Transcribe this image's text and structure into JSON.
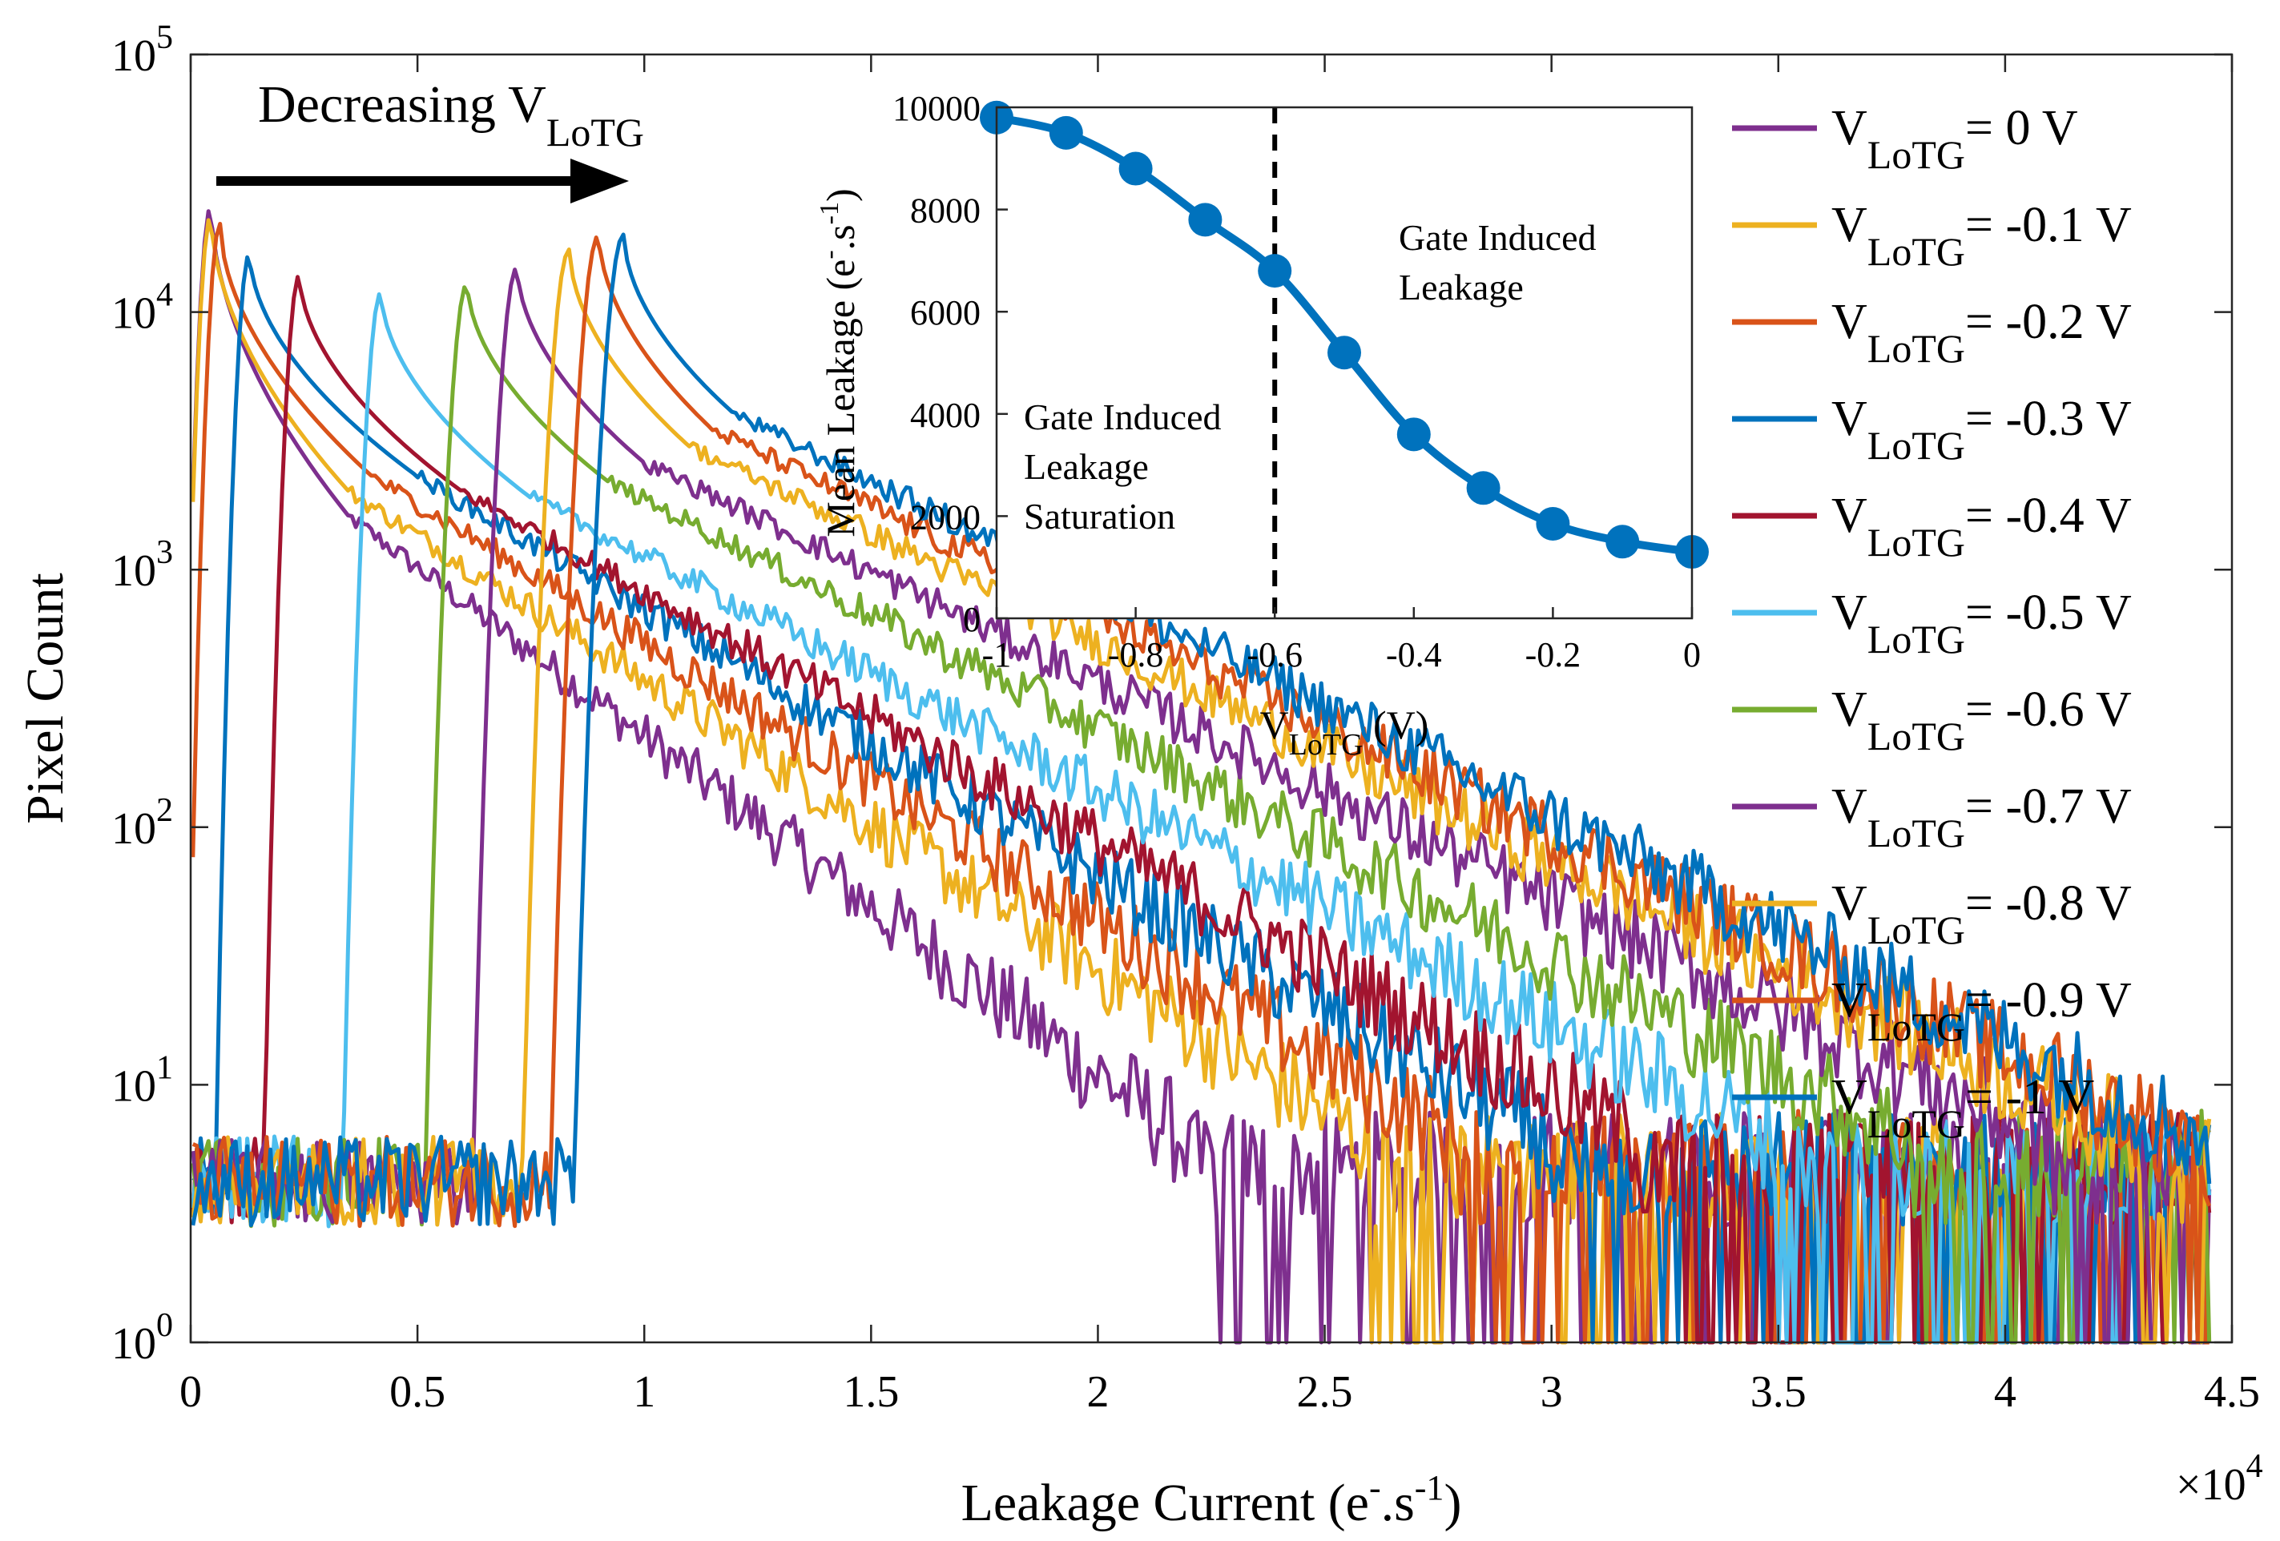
{
  "chart_data": [
    {
      "type": "line",
      "xlabel": "Leakage Current (e",
      "xlabel_sup1": "-",
      "xlabel_mid": ".s",
      "xlabel_sup2": "-1",
      "xlabel_end": ")",
      "ylabel": "Pixel Count",
      "x_multiplier_base": "×10",
      "x_multiplier_exp": "4",
      "xlim": [
        0,
        4.5
      ],
      "ylim": [
        1,
        100000
      ],
      "yscale": "log",
      "x_ticks": [
        "0",
        "0.5",
        "1",
        "1.5",
        "2",
        "2.5",
        "3",
        "3.5",
        "4",
        "4.5"
      ],
      "y_ticks": [
        {
          "base": "10",
          "exp": "0"
        },
        {
          "base": "10",
          "exp": "1"
        },
        {
          "base": "10",
          "exp": "2"
        },
        {
          "base": "10",
          "exp": "3"
        },
        {
          "base": "10",
          "exp": "4"
        },
        {
          "base": "10",
          "exp": "5"
        }
      ],
      "annotation": {
        "text": "Decreasing V",
        "sub": "LoTG"
      },
      "legend_position": "right",
      "series": [
        {
          "name": "V",
          "sub": "LoTG",
          "suffix": "= 0 V",
          "color": "#7E2F8E",
          "peak_x": 0.045,
          "peak_y": 26000,
          "tail_start_x": 0.35,
          "tail_start_y": 1600,
          "tail_end_x": 2.2,
          "tail_end_y": 6
        },
        {
          "name": "V",
          "sub": "LoTG",
          "suffix": "= -0.1 V",
          "color": "#EDB120",
          "peak_x": 0.045,
          "peak_y": 24000,
          "tail_start_x": 0.35,
          "tail_start_y": 2000,
          "tail_end_x": 2.6,
          "tail_end_y": 6
        },
        {
          "name": "V",
          "sub": "LoTG",
          "suffix": "= -0.2 V",
          "color": "#D95319",
          "peak_x": 0.065,
          "peak_y": 22000,
          "tail_start_x": 0.4,
          "tail_start_y": 2300,
          "tail_end_x": 2.8,
          "tail_end_y": 6
        },
        {
          "name": "V",
          "sub": "LoTG",
          "suffix": "= -0.3 V",
          "color": "#0072BD",
          "peak_x": 0.13,
          "peak_y": 17000,
          "tail_start_x": 0.5,
          "tail_start_y": 2300,
          "tail_end_x": 3.0,
          "tail_end_y": 6
        },
        {
          "name": "V",
          "sub": "LoTG",
          "suffix": "= -0.4 V",
          "color": "#A2142F",
          "peak_x": 0.24,
          "peak_y": 14000,
          "tail_start_x": 0.6,
          "tail_start_y": 2000,
          "tail_end_x": 3.2,
          "tail_end_y": 6
        },
        {
          "name": "V",
          "sub": "LoTG",
          "suffix": "= -0.5 V",
          "color": "#4DBEEE",
          "peak_x": 0.42,
          "peak_y": 12000,
          "tail_start_x": 0.75,
          "tail_start_y": 1900,
          "tail_end_x": 3.5,
          "tail_end_y": 6
        },
        {
          "name": "V",
          "sub": "LoTG",
          "suffix": "= -0.6 V",
          "color": "#77AC30",
          "peak_x": 0.61,
          "peak_y": 13000,
          "tail_start_x": 0.92,
          "tail_start_y": 2200,
          "tail_end_x": 3.8,
          "tail_end_y": 6
        },
        {
          "name": "V",
          "sub": "LoTG",
          "suffix": "= -0.7 V",
          "color": "#7E2F8E",
          "peak_x": 0.72,
          "peak_y": 15000,
          "tail_start_x": 1.0,
          "tail_start_y": 2600,
          "tail_end_x": 4.1,
          "tail_end_y": 6
        },
        {
          "name": "V",
          "sub": "LoTG",
          "suffix": "= -0.8 V",
          "color": "#EDB120",
          "peak_x": 0.835,
          "peak_y": 17500,
          "tail_start_x": 1.1,
          "tail_start_y": 3000,
          "tail_end_x": 4.3,
          "tail_end_y": 6
        },
        {
          "name": "V",
          "sub": "LoTG",
          "suffix": "= -0.9 V",
          "color": "#D95319",
          "peak_x": 0.9,
          "peak_y": 20000,
          "tail_start_x": 1.15,
          "tail_start_y": 3500,
          "tail_end_x": 4.4,
          "tail_end_y": 6
        },
        {
          "name": "V",
          "sub": "LoTG",
          "suffix": "= -1 V",
          "color": "#0072BD",
          "peak_x": 0.955,
          "peak_y": 20000,
          "tail_start_x": 1.2,
          "tail_start_y": 4000,
          "tail_end_x": 4.45,
          "tail_end_y": 6
        }
      ]
    },
    {
      "type": "line",
      "xlabel": "V",
      "xlabel_sub": "LoTG",
      "xlabel_end": " (V)",
      "ylabel": "Mean Leakage (e",
      "ylabel_sup1": "-",
      "ylabel_mid": ".s",
      "ylabel_sup2": "-1",
      "ylabel_end": ")",
      "xlim": [
        -1,
        0
      ],
      "ylim": [
        0,
        10000
      ],
      "x_ticks": [
        "-1",
        "-0.8",
        "-0.6",
        "-0.4",
        "-0.2",
        "0"
      ],
      "x_tick_values": [
        -1,
        -0.8,
        -0.6,
        -0.4,
        -0.2,
        0
      ],
      "y_ticks": [
        "0",
        "2000",
        "4000",
        "6000",
        "8000",
        "10000"
      ],
      "y_tick_values": [
        0,
        2000,
        4000,
        6000,
        8000,
        10000
      ],
      "x": [
        -1,
        -0.9,
        -0.8,
        -0.7,
        -0.6,
        -0.5,
        -0.4,
        -0.3,
        -0.2,
        -0.1,
        0
      ],
      "y": [
        9800,
        9500,
        8800,
        7800,
        6800,
        5200,
        3600,
        2550,
        1850,
        1500,
        1300
      ],
      "color": "#0072BD",
      "vline_x": -0.6,
      "annotations": [
        {
          "lines": [
            "Gate Induced",
            "Leakage"
          ]
        },
        {
          "lines": [
            "Gate Induced",
            "Leakage",
            "Saturation"
          ]
        }
      ]
    }
  ]
}
